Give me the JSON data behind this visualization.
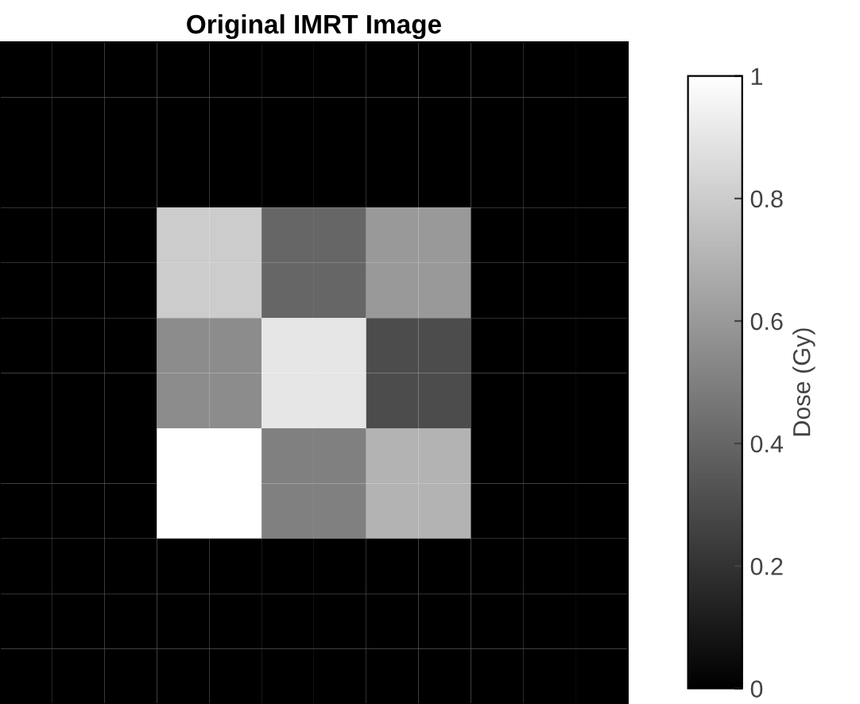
{
  "chart_data": {
    "type": "heatmap",
    "title": "Original IMRT Image",
    "clabel": "Dose (Gy)",
    "categories": [
      null,
      null,
      null,
      null,
      null,
      null,
      null,
      null,
      null,
      null,
      null,
      null
    ],
    "y_categories": [
      null,
      null,
      null,
      null,
      null,
      null,
      null,
      null,
      null,
      null,
      null,
      null
    ],
    "cells": [
      [
        0,
        0,
        0,
        0,
        0,
        0,
        0,
        0,
        0,
        0,
        0,
        0
      ],
      [
        0,
        0,
        0,
        0,
        0,
        0,
        0,
        0,
        0,
        0,
        0,
        0
      ],
      [
        0,
        0,
        0,
        0,
        0,
        0,
        0,
        0,
        0,
        0,
        0,
        0
      ],
      [
        0,
        0,
        0,
        0.8,
        0.8,
        0.4,
        0.4,
        0.6,
        0.6,
        0,
        0,
        0
      ],
      [
        0,
        0,
        0,
        0.8,
        0.8,
        0.4,
        0.4,
        0.6,
        0.6,
        0,
        0,
        0
      ],
      [
        0,
        0,
        0,
        0.55,
        0.55,
        0.9,
        0.9,
        0.3,
        0.3,
        0,
        0,
        0
      ],
      [
        0,
        0,
        0,
        0.55,
        0.55,
        0.9,
        0.9,
        0.3,
        0.3,
        0,
        0,
        0
      ],
      [
        0,
        0,
        0,
        1,
        1,
        0.5,
        0.5,
        0.7,
        0.7,
        0,
        0,
        0
      ],
      [
        0,
        0,
        0,
        1,
        1,
        0.5,
        0.5,
        0.7,
        0.7,
        0,
        0,
        0
      ],
      [
        0,
        0,
        0,
        0,
        0,
        0,
        0,
        0,
        0,
        0,
        0,
        0
      ],
      [
        0,
        0,
        0,
        0,
        0,
        0,
        0,
        0,
        0,
        0,
        0,
        0
      ],
      [
        0,
        0,
        0,
        0,
        0,
        0,
        0,
        0,
        0,
        0,
        0,
        0
      ]
    ],
    "clim": [
      0,
      1
    ],
    "cticks": [
      0,
      0.2,
      0.4,
      0.6,
      0.8,
      1
    ]
  }
}
